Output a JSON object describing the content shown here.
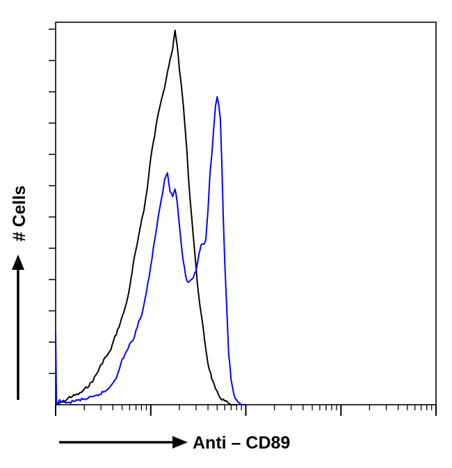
{
  "chart_data": {
    "type": "line",
    "title": "",
    "xlabel": "Anti – CD89",
    "ylabel": "# Cells",
    "x_scale": "log",
    "xlim": [
      1,
      10000
    ],
    "ylim": [
      0,
      100
    ],
    "grid": false,
    "legend": "none",
    "x_tick_labels": [],
    "y_tick_labels": [],
    "series": [
      {
        "color": "#000000",
        "x": [
          1.0,
          1.1,
          1.25,
          1.4,
          1.6,
          1.8,
          2.0,
          2.4,
          2.8,
          3.2,
          3.7,
          4.2,
          4.8,
          5.4,
          6.0,
          6.6,
          7.2,
          7.8,
          8.5,
          9.2,
          10.0,
          11.0,
          12.0,
          13.0,
          14.0,
          15.0,
          16.0,
          17.0,
          18.0,
          19.0,
          20.0,
          21.0,
          22.0,
          23.0,
          24.0,
          25.0,
          27.0,
          29.0,
          31.0,
          34.0,
          37.0,
          40.0,
          44.0,
          48.0,
          52.0,
          56.0,
          60.0,
          65.0,
          70.0,
          80.0
        ],
        "y": [
          0,
          0.5,
          1,
          2,
          2.5,
          3,
          4,
          6,
          9,
          12,
          14,
          18,
          22,
          26,
          31,
          38,
          43,
          48,
          52,
          58,
          66,
          72,
          78,
          82,
          85,
          89,
          92,
          95,
          100,
          96,
          90,
          85,
          80,
          74,
          68,
          60,
          50,
          41,
          32,
          24,
          17,
          11,
          7,
          4,
          2.5,
          1.5,
          1,
          0.5,
          0,
          0
        ]
      },
      {
        "color": "#0000ff",
        "x": [
          1.0,
          1.02,
          1.1,
          1.3,
          1.6,
          2.0,
          2.5,
          3.0,
          3.5,
          4.0,
          4.5,
          5.0,
          5.5,
          6.0,
          6.5,
          7.0,
          8.0,
          9.0,
          10.0,
          11.0,
          12.0,
          13.0,
          14.0,
          15.0,
          16.0,
          17.0,
          18.0,
          19.0,
          20.0,
          22.0,
          24.0,
          26.0,
          28.0,
          30.0,
          32.0,
          34.0,
          36.0,
          38.0,
          40.0,
          42.0,
          44.0,
          46.0,
          48.0,
          50.0,
          52.0,
          54.0,
          56.0,
          58.0,
          60.0,
          63.0,
          66.0,
          70.0,
          75.0,
          80.0,
          90.0,
          100.0
        ],
        "y": [
          19,
          0,
          1,
          0.5,
          1,
          1.5,
          2,
          3,
          4,
          6,
          8,
          12,
          14,
          16,
          17,
          20,
          24,
          30,
          37,
          44,
          50,
          55,
          60,
          62,
          57,
          56,
          58,
          54,
          48,
          38,
          33,
          33,
          34,
          36,
          40,
          43,
          43,
          44,
          52,
          62,
          67,
          74,
          80,
          82,
          80,
          76,
          64,
          50,
          38,
          26,
          14,
          7,
          3,
          1,
          0,
          0
        ]
      }
    ]
  }
}
